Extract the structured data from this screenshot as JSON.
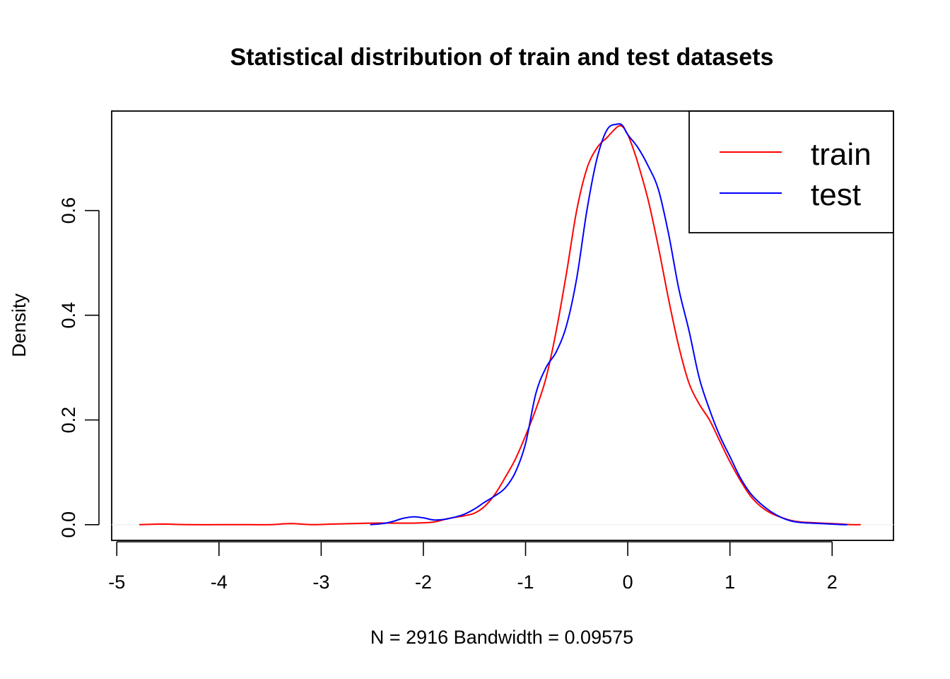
{
  "chart_data": {
    "type": "line",
    "title": "Statistical distribution of train and test datasets",
    "xlabel": "N = 2916   Bandwidth = 0.09575",
    "ylabel": "Density",
    "xlim": [
      -5.05,
      2.6
    ],
    "ylim": [
      -0.03,
      0.79
    ],
    "x_ticks": [
      -5,
      -4,
      -3,
      -2,
      -1,
      0,
      1,
      2
    ],
    "x_tick_labels": [
      "-5",
      "-4",
      "-3",
      "-2",
      "-1",
      "0",
      "1",
      "2"
    ],
    "y_ticks": [
      0.0,
      0.2,
      0.4,
      0.6
    ],
    "y_tick_labels": [
      "0.0",
      "0.2",
      "0.4",
      "0.6"
    ],
    "grid": false,
    "legend_position": "top-right",
    "series": [
      {
        "name": "train",
        "color": "#ff0000",
        "x": [
          -4.78,
          -4.6,
          -4.5,
          -4.3,
          -4.0,
          -3.7,
          -3.5,
          -3.3,
          -3.1,
          -2.9,
          -2.7,
          -2.5,
          -2.3,
          -2.1,
          -1.9,
          -1.75,
          -1.6,
          -1.5,
          -1.4,
          -1.3,
          -1.2,
          -1.1,
          -1.0,
          -0.9,
          -0.8,
          -0.7,
          -0.6,
          -0.5,
          -0.4,
          -0.3,
          -0.2,
          -0.1,
          -0.05,
          0.0,
          0.05,
          0.1,
          0.2,
          0.3,
          0.4,
          0.5,
          0.6,
          0.7,
          0.8,
          0.9,
          1.0,
          1.1,
          1.2,
          1.3,
          1.4,
          1.5,
          1.6,
          1.7,
          1.8,
          1.9,
          2.0,
          2.1,
          2.2,
          2.28
        ],
        "y": [
          0.0,
          0.001,
          0.001,
          0.0,
          0.0,
          0.0,
          0.0,
          0.002,
          0.0,
          0.001,
          0.002,
          0.003,
          0.003,
          0.003,
          0.005,
          0.012,
          0.017,
          0.022,
          0.035,
          0.058,
          0.09,
          0.125,
          0.17,
          0.22,
          0.28,
          0.37,
          0.48,
          0.6,
          0.68,
          0.72,
          0.74,
          0.76,
          0.76,
          0.745,
          0.72,
          0.69,
          0.62,
          0.53,
          0.43,
          0.34,
          0.27,
          0.23,
          0.2,
          0.16,
          0.12,
          0.085,
          0.055,
          0.035,
          0.022,
          0.014,
          0.008,
          0.005,
          0.004,
          0.003,
          0.002,
          0.001,
          0.0,
          0.0
        ]
      },
      {
        "name": "test",
        "color": "#0000ff",
        "x": [
          -2.52,
          -2.4,
          -2.3,
          -2.2,
          -2.1,
          -2.0,
          -1.9,
          -1.8,
          -1.7,
          -1.6,
          -1.5,
          -1.4,
          -1.3,
          -1.2,
          -1.1,
          -1.0,
          -0.9,
          -0.8,
          -0.7,
          -0.6,
          -0.5,
          -0.4,
          -0.3,
          -0.2,
          -0.1,
          -0.05,
          0.0,
          0.1,
          0.2,
          0.3,
          0.4,
          0.5,
          0.6,
          0.7,
          0.8,
          0.9,
          1.0,
          1.1,
          1.2,
          1.3,
          1.4,
          1.5,
          1.6,
          1.7,
          1.8,
          1.9,
          2.0,
          2.1,
          2.15
        ],
        "y": [
          0.0,
          0.002,
          0.006,
          0.012,
          0.015,
          0.013,
          0.009,
          0.01,
          0.014,
          0.02,
          0.03,
          0.043,
          0.055,
          0.07,
          0.1,
          0.155,
          0.25,
          0.3,
          0.33,
          0.38,
          0.47,
          0.6,
          0.7,
          0.755,
          0.765,
          0.762,
          0.745,
          0.72,
          0.685,
          0.64,
          0.555,
          0.45,
          0.37,
          0.28,
          0.22,
          0.17,
          0.13,
          0.09,
          0.06,
          0.04,
          0.025,
          0.014,
          0.007,
          0.004,
          0.003,
          0.002,
          0.001,
          0.0,
          0.0
        ]
      }
    ]
  }
}
